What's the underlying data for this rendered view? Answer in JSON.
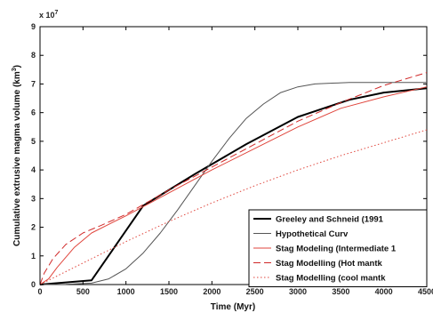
{
  "chart_data": {
    "type": "line",
    "xlabel": "Time (Myr)",
    "ylabel": "Cumulative extrusive magma volume (km",
    "ylabel_sup": "3",
    "ylabel_close": ")",
    "y_exponent_base": "x 10",
    "y_exponent_power": "7",
    "xlim": [
      0,
      4500
    ],
    "ylim": [
      0,
      9
    ],
    "x_ticks": [
      0,
      500,
      1000,
      1500,
      2000,
      2500,
      3000,
      3500,
      4000,
      4500
    ],
    "y_ticks": [
      0,
      1,
      2,
      3,
      4,
      5,
      6,
      7,
      8,
      9
    ],
    "grid": false,
    "legend_position": "bottom-right",
    "series": [
      {
        "name": "Greeley and Schneid (1991",
        "color": "#000000",
        "style": "solid",
        "width": 2,
        "x": [
          0,
          600,
          1200,
          1800,
          2400,
          3000,
          3600,
          4000,
          4500
        ],
        "y": [
          0,
          0.15,
          2.75,
          3.85,
          4.9,
          5.85,
          6.45,
          6.7,
          6.85
        ]
      },
      {
        "name": "Hypothetical Curv",
        "color": "#555555",
        "style": "solid",
        "width": 1,
        "x": [
          0,
          300,
          600,
          800,
          1000,
          1200,
          1400,
          1600,
          1800,
          2000,
          2200,
          2400,
          2600,
          2800,
          3000,
          3200,
          3400,
          3600,
          3800,
          4000,
          4500
        ],
        "y": [
          0,
          0.01,
          0.05,
          0.2,
          0.55,
          1.1,
          1.8,
          2.6,
          3.45,
          4.3,
          5.1,
          5.8,
          6.3,
          6.7,
          6.9,
          7.0,
          7.03,
          7.05,
          7.05,
          7.05,
          7.05
        ]
      },
      {
        "name": "Stag Modeling (Intermediate 1",
        "color": "#e0453c",
        "style": "solid",
        "width": 1,
        "x": [
          0,
          100,
          200,
          400,
          600,
          800,
          1000,
          1500,
          2000,
          2500,
          3000,
          3500,
          4000,
          4500
        ],
        "y": [
          0,
          0.2,
          0.6,
          1.3,
          1.8,
          2.1,
          2.4,
          3.2,
          4.0,
          4.75,
          5.5,
          6.15,
          6.55,
          6.9
        ]
      },
      {
        "name": "Stag Modelling (Hot mantk",
        "color": "#d02828",
        "style": "dashed",
        "width": 1,
        "x": [
          0,
          50,
          150,
          300,
          500,
          700,
          1000,
          1500,
          2000,
          2500,
          3000,
          3500,
          4000,
          4500
        ],
        "y": [
          0,
          0.4,
          0.9,
          1.4,
          1.8,
          2.05,
          2.45,
          3.3,
          4.1,
          4.9,
          5.7,
          6.35,
          6.95,
          7.4
        ]
      },
      {
        "name": "Stag Modelling (cool mantk",
        "color": "#e0453c",
        "style": "dotted",
        "width": 1,
        "x": [
          0,
          500,
          1000,
          1500,
          2000,
          2500,
          3000,
          3500,
          4000,
          4500
        ],
        "y": [
          0,
          0.75,
          1.5,
          2.2,
          2.85,
          3.45,
          4.0,
          4.5,
          4.95,
          5.4
        ]
      }
    ]
  }
}
